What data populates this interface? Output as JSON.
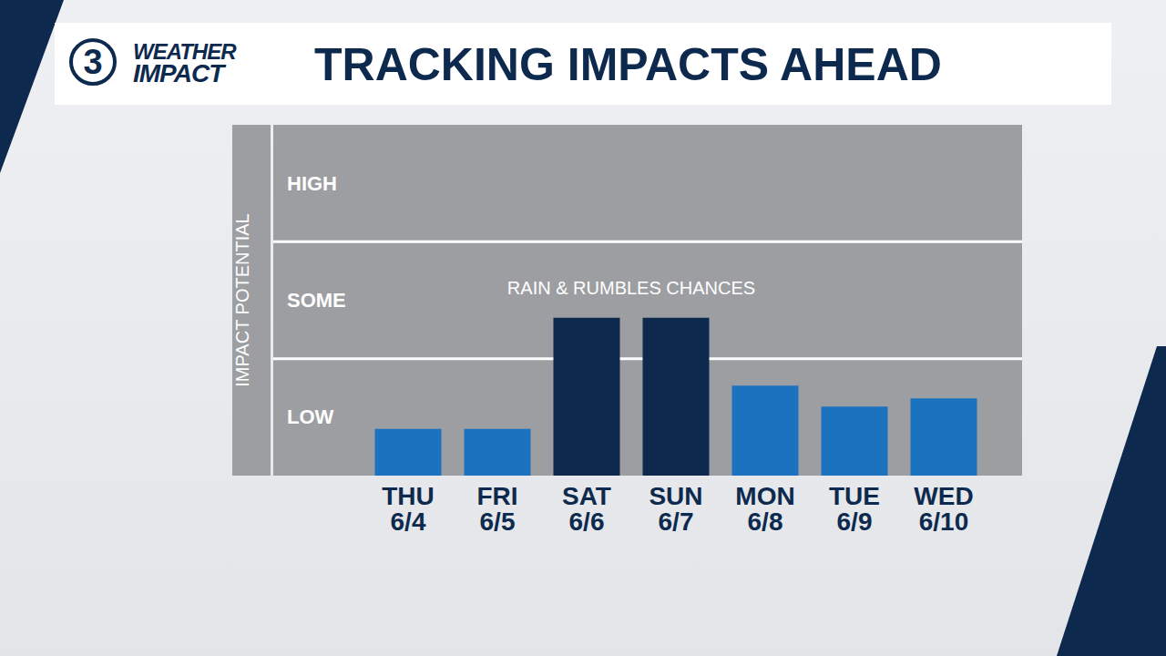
{
  "chart_data": {
    "type": "bar",
    "logo": {
      "number": "3",
      "lines": [
        "WEATHER",
        "IMPACT"
      ]
    },
    "title": "TRACKING IMPACTS AHEAD",
    "y_label": "IMPACT POTENTIAL",
    "annotation": "RAIN & RUMBLES CHANCES",
    "categories": [
      "THU 6/4",
      "FRI 6/5",
      "SAT 6/6",
      "SUN 6/7",
      "MON 6/8",
      "TUE 6/9",
      "WED 6/10"
    ],
    "values": [
      0.4,
      0.4,
      1.35,
      1.35,
      0.77,
      0.59,
      0.66
    ],
    "colors": [
      "#1b72bf",
      "#1b72bf",
      "#0d2a4e",
      "#0d2a4e",
      "#1b72bf",
      "#1b72bf",
      "#1b72bf"
    ],
    "ylim": [
      0,
      3
    ],
    "yticks": [
      {
        "value": 0.5,
        "label": "LOW"
      },
      {
        "value": 1.5,
        "label": "SOME"
      },
      {
        "value": 2.5,
        "label": "HIGH"
      }
    ],
    "grid": true
  }
}
